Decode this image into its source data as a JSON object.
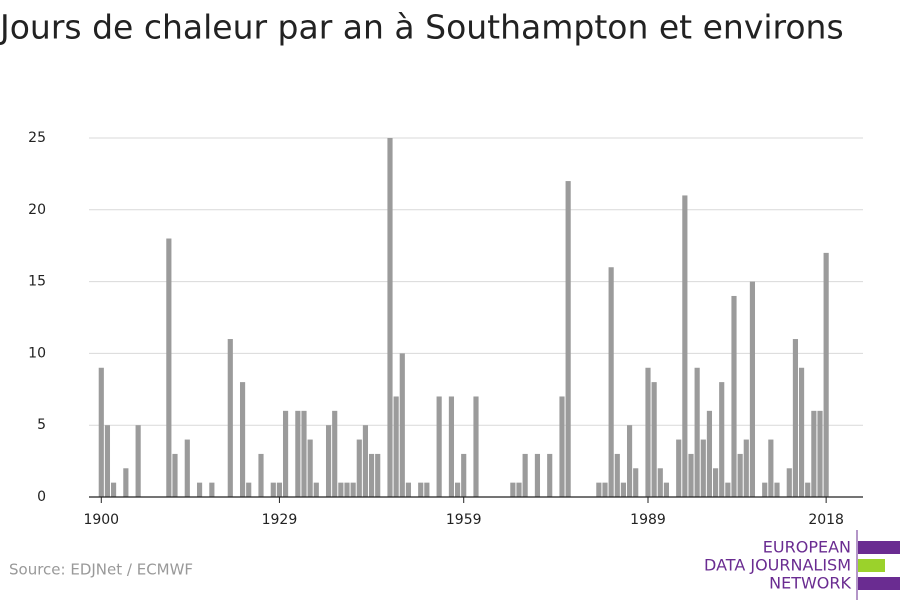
{
  "chart_data": {
    "type": "bar",
    "title": "Jours de chaleur par an à Southampton et environs",
    "x": [
      1900,
      1901,
      1902,
      1903,
      1904,
      1905,
      1906,
      1907,
      1908,
      1909,
      1910,
      1911,
      1912,
      1913,
      1914,
      1915,
      1916,
      1917,
      1918,
      1919,
      1920,
      1921,
      1922,
      1923,
      1924,
      1925,
      1926,
      1927,
      1928,
      1929,
      1930,
      1931,
      1932,
      1933,
      1934,
      1935,
      1936,
      1937,
      1938,
      1939,
      1940,
      1941,
      1942,
      1943,
      1944,
      1945,
      1946,
      1947,
      1948,
      1949,
      1950,
      1951,
      1952,
      1953,
      1954,
      1955,
      1956,
      1957,
      1958,
      1959,
      1960,
      1961,
      1962,
      1963,
      1964,
      1965,
      1966,
      1967,
      1968,
      1969,
      1970,
      1971,
      1972,
      1973,
      1974,
      1975,
      1976,
      1977,
      1978,
      1979,
      1980,
      1981,
      1982,
      1983,
      1984,
      1985,
      1986,
      1987,
      1988,
      1989,
      1990,
      1991,
      1992,
      1993,
      1994,
      1995,
      1996,
      1997,
      1998,
      1999,
      2000,
      2001,
      2002,
      2003,
      2004,
      2005,
      2006,
      2007,
      2008,
      2009,
      2010,
      2011,
      2012,
      2013,
      2014,
      2015,
      2016,
      2017,
      2018
    ],
    "values": [
      9,
      5,
      1,
      0,
      2,
      0,
      5,
      0,
      0,
      0,
      0,
      18,
      3,
      0,
      4,
      0,
      1,
      0,
      1,
      0,
      0,
      11,
      0,
      8,
      1,
      0,
      3,
      0,
      1,
      1,
      6,
      0,
      6,
      6,
      4,
      1,
      0,
      5,
      6,
      1,
      1,
      1,
      4,
      5,
      3,
      3,
      0,
      25,
      7,
      10,
      1,
      0,
      1,
      1,
      0,
      7,
      0,
      7,
      1,
      3,
      0,
      7,
      0,
      0,
      0,
      0,
      0,
      1,
      1,
      3,
      0,
      3,
      0,
      3,
      0,
      7,
      22,
      0,
      0,
      0,
      0,
      1,
      1,
      16,
      3,
      1,
      5,
      2,
      0,
      9,
      8,
      2,
      1,
      0,
      4,
      21,
      3,
      9,
      4,
      6,
      2,
      8,
      1,
      14,
      3,
      4,
      15,
      0,
      1,
      4,
      1,
      0,
      2,
      11,
      9,
      1,
      6,
      6,
      17
    ],
    "color": "#9b9b9b",
    "xlim": [
      1898,
      2024
    ],
    "xticks": [
      1900,
      1929,
      1959,
      1989,
      2018
    ],
    "ylim": [
      0,
      25
    ],
    "yticks": [
      0,
      5,
      10,
      15,
      20,
      25
    ],
    "grid": true,
    "source": "Source: EDJNet / ECMWF"
  },
  "logo": {
    "lines": [
      "EUROPEAN",
      "DATA JOURNALISM",
      "NETWORK"
    ]
  }
}
